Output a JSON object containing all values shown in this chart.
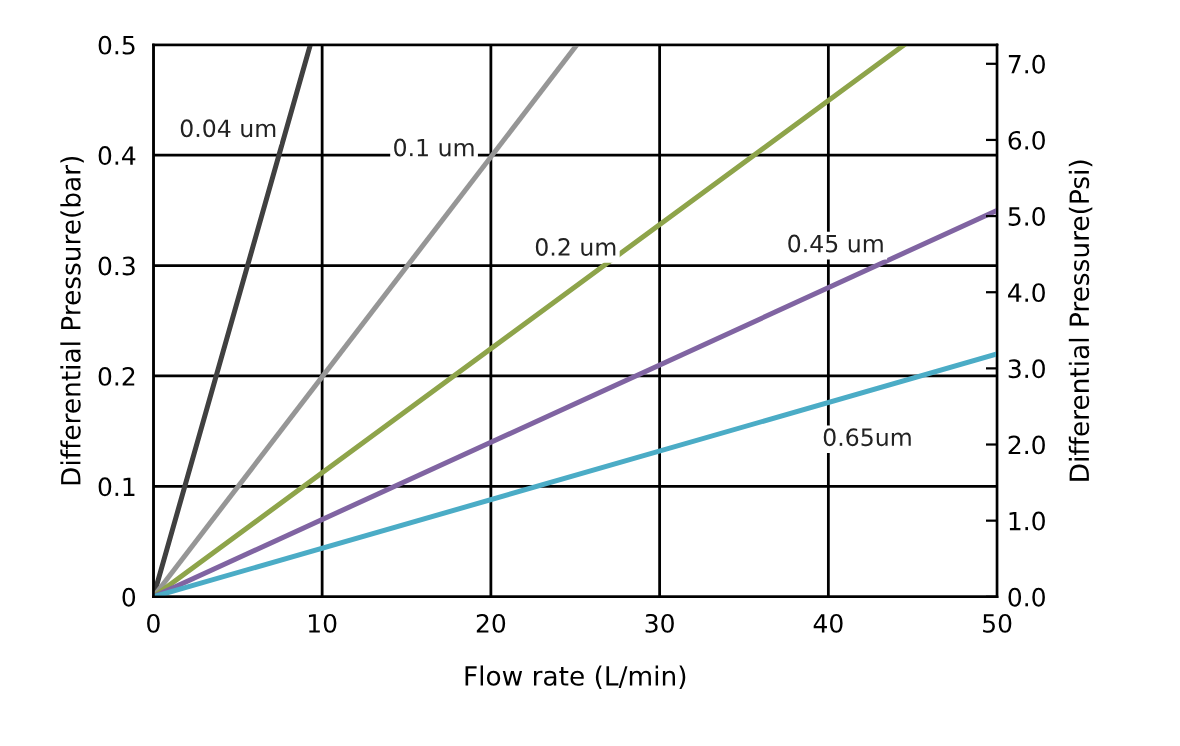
{
  "chart_data": {
    "type": "line",
    "xlabel": "Flow rate (L/min)",
    "ylabel": "Differential Pressure(bar)",
    "y2label": "Differential Pressure(Psi)",
    "series": [
      {
        "name": "0.04 um",
        "color": "#404040",
        "x": [
          0,
          9.3
        ],
        "values": [
          0,
          0.5
        ]
      },
      {
        "name": "0.1 um",
        "color": "#969696",
        "x": [
          0,
          25.1
        ],
        "values": [
          0,
          0.5
        ]
      },
      {
        "name": "0.2 um",
        "color": "#8ea44a",
        "x": [
          0,
          44.5
        ],
        "values": [
          0,
          0.5
        ]
      },
      {
        "name": "0.45 um",
        "color": "#8064a2",
        "x": [
          0,
          50
        ],
        "values": [
          0,
          0.35
        ]
      },
      {
        "name": "0.65um",
        "color": "#4bacc6",
        "x": [
          0,
          50
        ],
        "values": [
          0,
          0.22
        ]
      }
    ],
    "xlim": [
      0,
      50
    ],
    "xticks": [
      0,
      10,
      20,
      30,
      40,
      50
    ],
    "ylim": [
      0,
      0.5
    ],
    "yticks": [
      0,
      0.1,
      0.2,
      0.3,
      0.4,
      0.5
    ],
    "y2lim": [
      0,
      7.25
    ],
    "y2ticks": [
      {
        "value": 0,
        "label": "0.0"
      },
      {
        "value": 1,
        "label": "1.0"
      },
      {
        "value": 2,
        "label": "2.0"
      },
      {
        "value": 3,
        "label": "3.0"
      },
      {
        "value": 4,
        "label": "4.0"
      },
      {
        "value": 5,
        "label": "5.0"
      },
      {
        "value": 6,
        "label": "6.0"
      },
      {
        "value": 7,
        "label": "7.0"
      }
    ],
    "grid": true,
    "legend": false,
    "marker": "none",
    "line_style": "solid"
  }
}
